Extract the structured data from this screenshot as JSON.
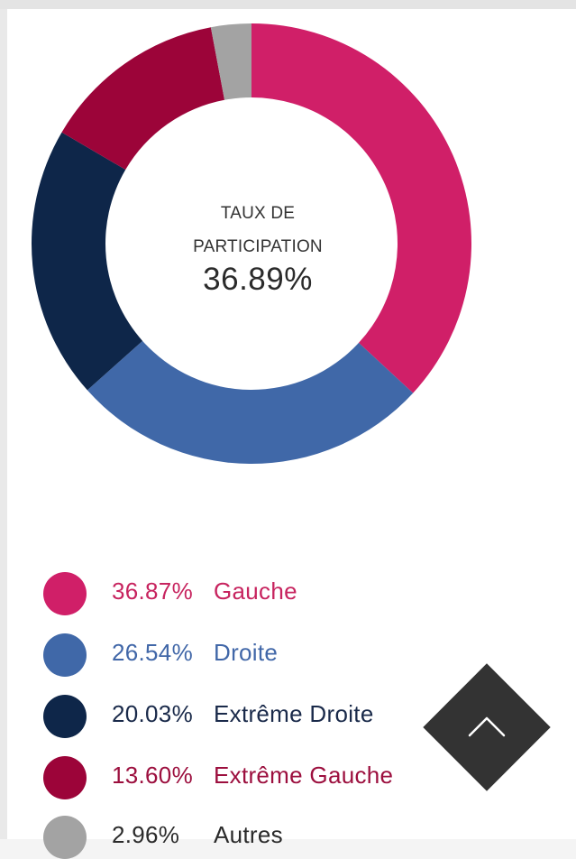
{
  "chart_data": {
    "type": "pie",
    "center_label_lines": [
      "TAUX DE",
      "PARTICIPATION"
    ],
    "center_value": "36.89%",
    "slices": [
      {
        "name": "Gauche",
        "label": "36.87%",
        "value": 36.87,
        "color": "#d01f68"
      },
      {
        "name": "Droite",
        "label": "26.54%",
        "value": 26.54,
        "color": "#4068a8"
      },
      {
        "name": "Extrême Droite",
        "label": "20.03%",
        "value": 20.03,
        "color": "#0e2649"
      },
      {
        "name": "Extrême Gauche",
        "label": "13.60%",
        "value": 13.6,
        "color": "#9c0439"
      },
      {
        "name": "Autres",
        "label": "2.96%",
        "value": 2.96,
        "color": "#a3a3a3"
      }
    ],
    "legend_text_colors": [
      "#c7245f",
      "#4167a8",
      "#1a2a4a",
      "#9c0f3e",
      "#2b2b2b"
    ]
  },
  "scroll_button": {
    "icon": "chevron-up-icon",
    "color": "#333333"
  }
}
